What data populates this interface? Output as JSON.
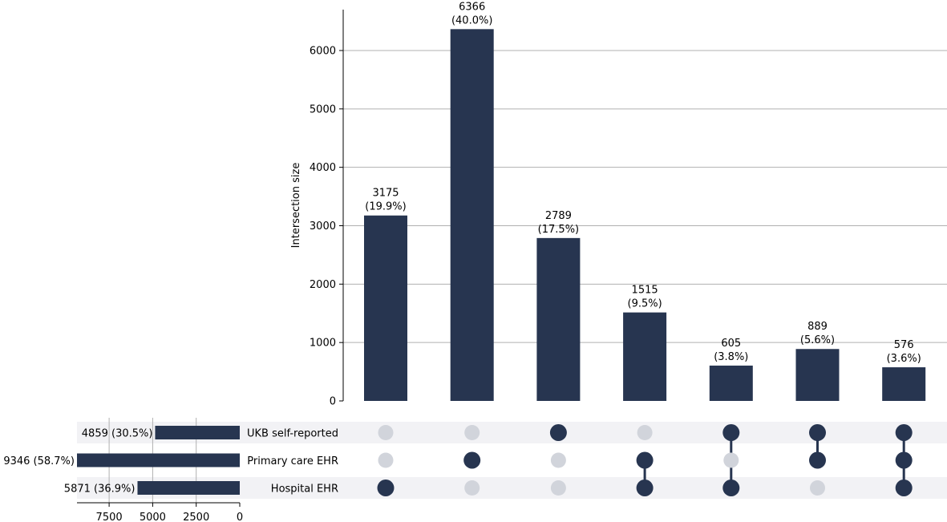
{
  "chart_data": {
    "type": "bar",
    "subtype": "upset",
    "ylabel": "Intersection size",
    "ylim": [
      0,
      6700
    ],
    "y_ticks": [
      0,
      1000,
      2000,
      3000,
      4000,
      5000,
      6000
    ],
    "grid": true,
    "sets": [
      {
        "name": "UKB self-reported",
        "size": 4859,
        "label": "4859 (30.5%)"
      },
      {
        "name": "Primary care EHR",
        "size": 9346,
        "label": "9346 (58.7%)"
      },
      {
        "name": "Hospital EHR",
        "size": 5871,
        "label": "5871 (36.9%)"
      }
    ],
    "set_size_ticks": [
      7500,
      5000,
      2500,
      0
    ],
    "set_size_xlim": [
      9346,
      0
    ],
    "intersections": [
      {
        "members": [
          "Hospital EHR"
        ],
        "value": 3175,
        "label_value": "3175",
        "label_pct": "(19.9%)"
      },
      {
        "members": [
          "Primary care EHR"
        ],
        "value": 6366,
        "label_value": "6366",
        "label_pct": "(40.0%)"
      },
      {
        "members": [
          "UKB self-reported"
        ],
        "value": 2789,
        "label_value": "2789",
        "label_pct": "(17.5%)"
      },
      {
        "members": [
          "Primary care EHR",
          "Hospital EHR"
        ],
        "value": 1515,
        "label_value": "1515",
        "label_pct": "(9.5%)"
      },
      {
        "members": [
          "UKB self-reported",
          "Hospital EHR"
        ],
        "value": 605,
        "label_value": "605",
        "label_pct": "(3.8%)"
      },
      {
        "members": [
          "UKB self-reported",
          "Primary care EHR"
        ],
        "value": 889,
        "label_value": "889",
        "label_pct": "(5.6%)"
      },
      {
        "members": [
          "UKB self-reported",
          "Primary care EHR",
          "Hospital EHR"
        ],
        "value": 576,
        "label_value": "576",
        "label_pct": "(3.6%)"
      }
    ],
    "colors": {
      "bar": "#273550",
      "inactive_dot": "#d1d4db",
      "row_shade": "#f2f2f5",
      "grid": "#b0b0b0"
    }
  }
}
